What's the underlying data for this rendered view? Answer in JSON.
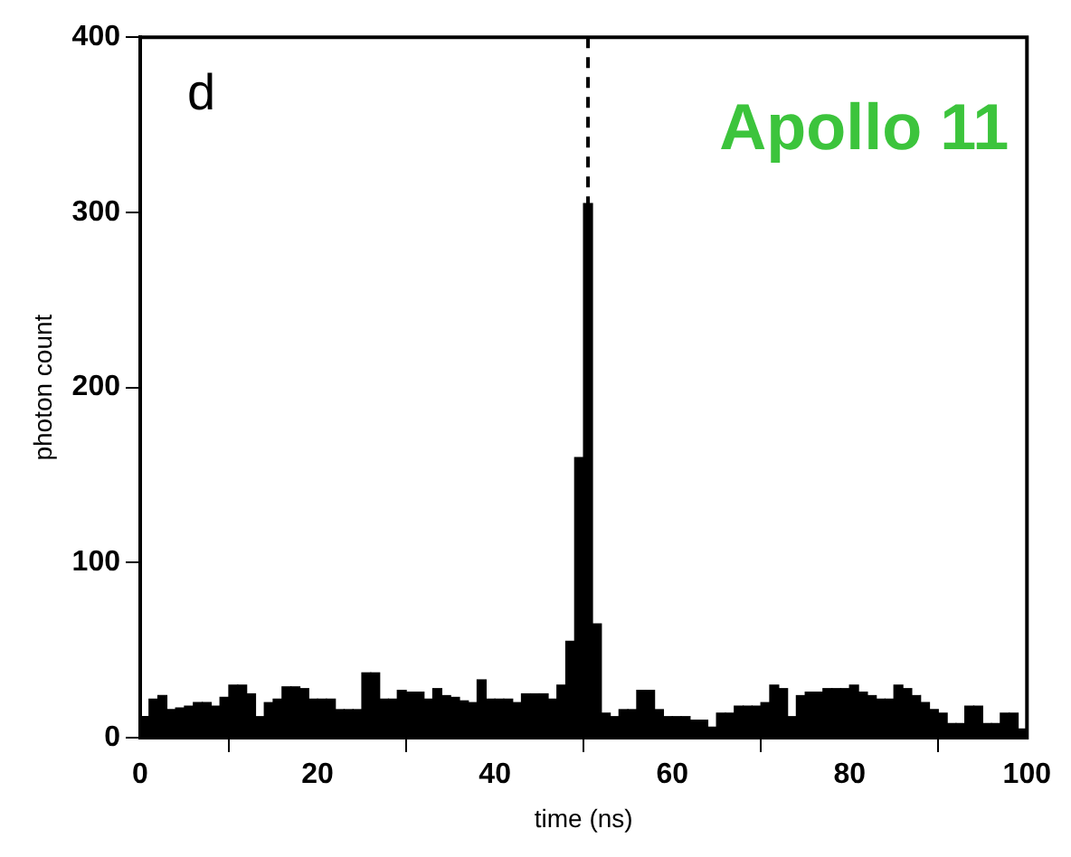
{
  "chart_data": {
    "type": "histogram",
    "xlabel": "time (ns)",
    "ylabel": "photon count",
    "annotations": [
      "d",
      "Apollo 11"
    ],
    "bins": [
      0,
      1,
      2,
      3,
      4,
      5,
      6,
      7,
      8,
      9,
      10,
      11,
      12,
      13,
      14,
      15,
      16,
      17,
      18,
      19,
      20,
      21,
      22,
      23,
      24,
      25,
      26,
      27,
      28,
      29,
      30,
      31,
      32,
      33,
      34,
      35,
      36,
      37,
      38,
      39,
      40,
      41,
      42,
      43,
      44,
      45,
      46,
      47,
      48,
      49,
      50,
      51,
      52,
      53,
      54,
      55,
      56,
      57,
      58,
      59,
      60,
      61,
      62,
      63,
      64,
      65,
      66,
      67,
      68,
      69,
      70,
      71,
      72,
      73,
      74,
      75,
      76,
      77,
      78,
      79,
      80,
      81,
      82,
      83,
      84,
      85,
      86,
      87,
      88,
      89,
      90,
      91,
      92,
      93,
      94,
      95,
      96,
      97,
      98,
      99,
      100
    ],
    "values": [
      12,
      22,
      24,
      16,
      17,
      18,
      20,
      20,
      18,
      23,
      30,
      30,
      25,
      12,
      20,
      22,
      29,
      29,
      28,
      22,
      22,
      22,
      16,
      16,
      16,
      37,
      37,
      22,
      22,
      27,
      26,
      26,
      22,
      28,
      24,
      23,
      21,
      20,
      33,
      22,
      22,
      22,
      20,
      25,
      25,
      25,
      22,
      30,
      55,
      160,
      305,
      65,
      14,
      12,
      16,
      16,
      27,
      27,
      16,
      12,
      12,
      12,
      10,
      10,
      6,
      14,
      14,
      18,
      18,
      18,
      20,
      30,
      28,
      12,
      24,
      26,
      26,
      28,
      28,
      28,
      30,
      26,
      24,
      22,
      22,
      30,
      28,
      24,
      20,
      16,
      14,
      8,
      8,
      18,
      18,
      8,
      8,
      14,
      14,
      5
    ],
    "color": "#000000",
    "xlim": [
      0,
      100
    ],
    "xticks": [
      0,
      20,
      40,
      60,
      80,
      100
    ],
    "ylim": [
      0,
      400
    ],
    "yticks": [
      0,
      100,
      200,
      300,
      400
    ],
    "grid": false,
    "legend": false,
    "ref_lines": [
      {
        "axis": "x",
        "value": 50.5,
        "line_style": "dashed",
        "color": "#000000"
      }
    ]
  }
}
